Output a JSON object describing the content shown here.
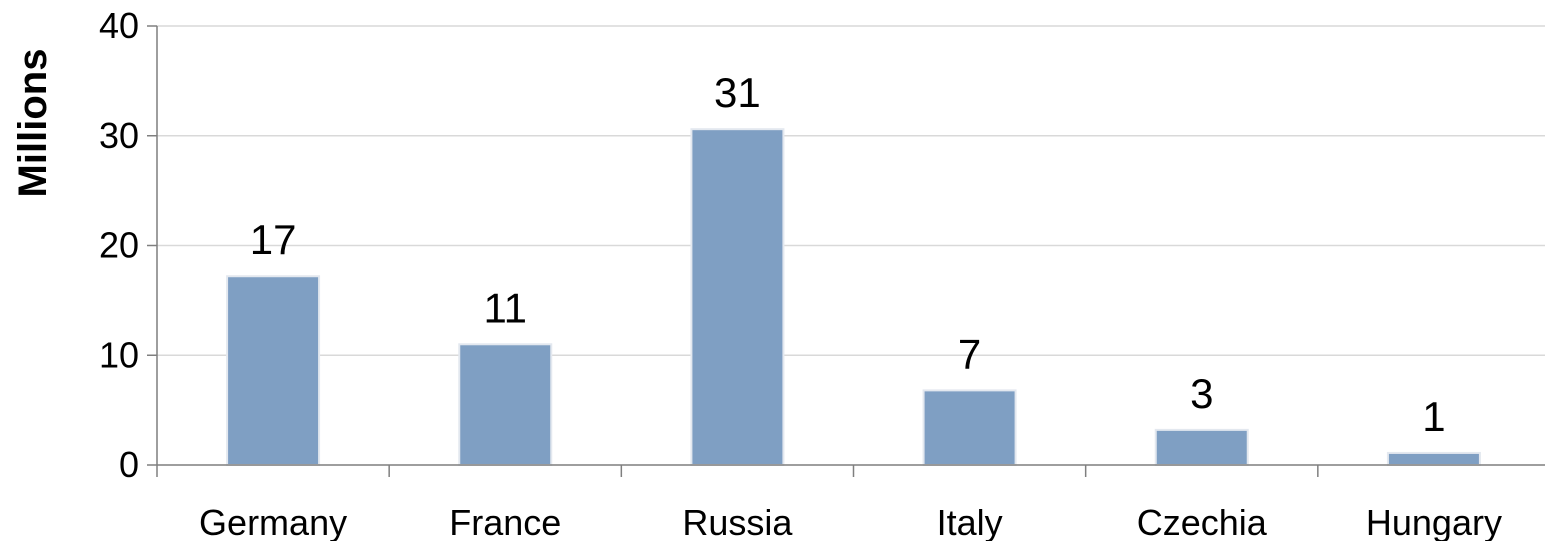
{
  "chart_data": {
    "type": "bar",
    "categories": [
      "Germany",
      "France",
      "Russia",
      "Italy",
      "Czechia",
      "Hungary"
    ],
    "values": [
      17.2,
      11,
      30.6,
      6.8,
      3.2,
      1.1
    ],
    "data_labels": [
      "17",
      "11",
      "31",
      "7",
      "3",
      "1"
    ],
    "title": "",
    "xlabel": "",
    "ylabel": "Millions",
    "ylim": [
      0,
      40
    ],
    "yticks": [
      0,
      10,
      20,
      30,
      40
    ],
    "ytick_labels": [
      "0",
      "10",
      "20",
      "30",
      "40"
    ],
    "grid": true,
    "legend": "none",
    "colors": {
      "bar": "#7f9fc3",
      "bar_edge": "#e3e8ef",
      "grid": "#d9d9d9",
      "axis": "#7f7f7f",
      "text": "#000000"
    }
  }
}
